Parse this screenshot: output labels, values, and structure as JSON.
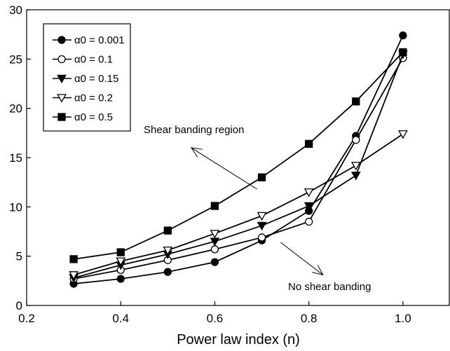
{
  "chart_data": {
    "type": "line",
    "title": "",
    "xlabel": "Power law index (n)",
    "ylabel": "",
    "xlim": [
      0.2,
      1.1
    ],
    "ylim": [
      0,
      30
    ],
    "xticks": [
      0.2,
      0.4,
      0.6,
      0.8,
      1.0
    ],
    "xtick_labels": [
      "0.2",
      "0.4",
      "0.6",
      "0.8",
      "1.0"
    ],
    "yticks": [
      0,
      5,
      10,
      15,
      20,
      25,
      30
    ],
    "ytick_labels": [
      "0",
      "5",
      "10",
      "15",
      "20",
      "25",
      "30"
    ],
    "grid": false,
    "legend_position": "top-left",
    "series": [
      {
        "name": "α0 = 0.001",
        "marker": "circle-filled",
        "color": "#000000",
        "x": [
          0.3,
          0.4,
          0.5,
          0.6,
          0.7,
          0.8,
          0.9,
          1.0
        ],
        "y": [
          2.2,
          2.7,
          3.4,
          4.4,
          6.6,
          9.6,
          17.2,
          27.4
        ]
      },
      {
        "name": "α0 = 0.1",
        "marker": "circle-open",
        "color": "#000000",
        "x": [
          0.3,
          0.4,
          0.5,
          0.6,
          0.7,
          0.8,
          0.9,
          1.0
        ],
        "y": [
          2.7,
          3.6,
          4.6,
          5.7,
          6.9,
          8.5,
          16.8,
          25.1
        ]
      },
      {
        "name": "α0 = 0.15",
        "marker": "triangle-down-filled",
        "color": "#000000",
        "x": [
          0.3,
          0.4,
          0.5,
          0.6,
          0.7,
          0.8,
          0.9,
          1.0
        ],
        "y": [
          2.8,
          4.1,
          5.2,
          6.5,
          8.1,
          10.1,
          13.2,
          25.5
        ]
      },
      {
        "name": "α0 = 0.2",
        "marker": "triangle-down-open",
        "color": "#000000",
        "x": [
          0.3,
          0.4,
          0.5,
          0.6,
          0.7,
          0.8,
          0.9,
          1.0
        ],
        "y": [
          3.1,
          4.5,
          5.6,
          7.3,
          9.1,
          11.5,
          14.2,
          17.4
        ]
      },
      {
        "name": "α0 = 0.5",
        "marker": "square-filled",
        "color": "#000000",
        "x": [
          0.3,
          0.4,
          0.5,
          0.6,
          0.7,
          0.8,
          0.9,
          1.0
        ],
        "y": [
          4.7,
          5.4,
          7.6,
          10.1,
          13.0,
          16.4,
          20.7,
          25.7
        ]
      }
    ],
    "annotations": [
      {
        "text": "Shear banding region",
        "arrow_from": [
          0.69,
          11.8
        ],
        "arrow_to": [
          0.55,
          16.0
        ]
      },
      {
        "text": "No shear banding",
        "arrow_from": [
          0.74,
          6.4
        ],
        "arrow_to": [
          0.83,
          3.1
        ]
      }
    ]
  }
}
